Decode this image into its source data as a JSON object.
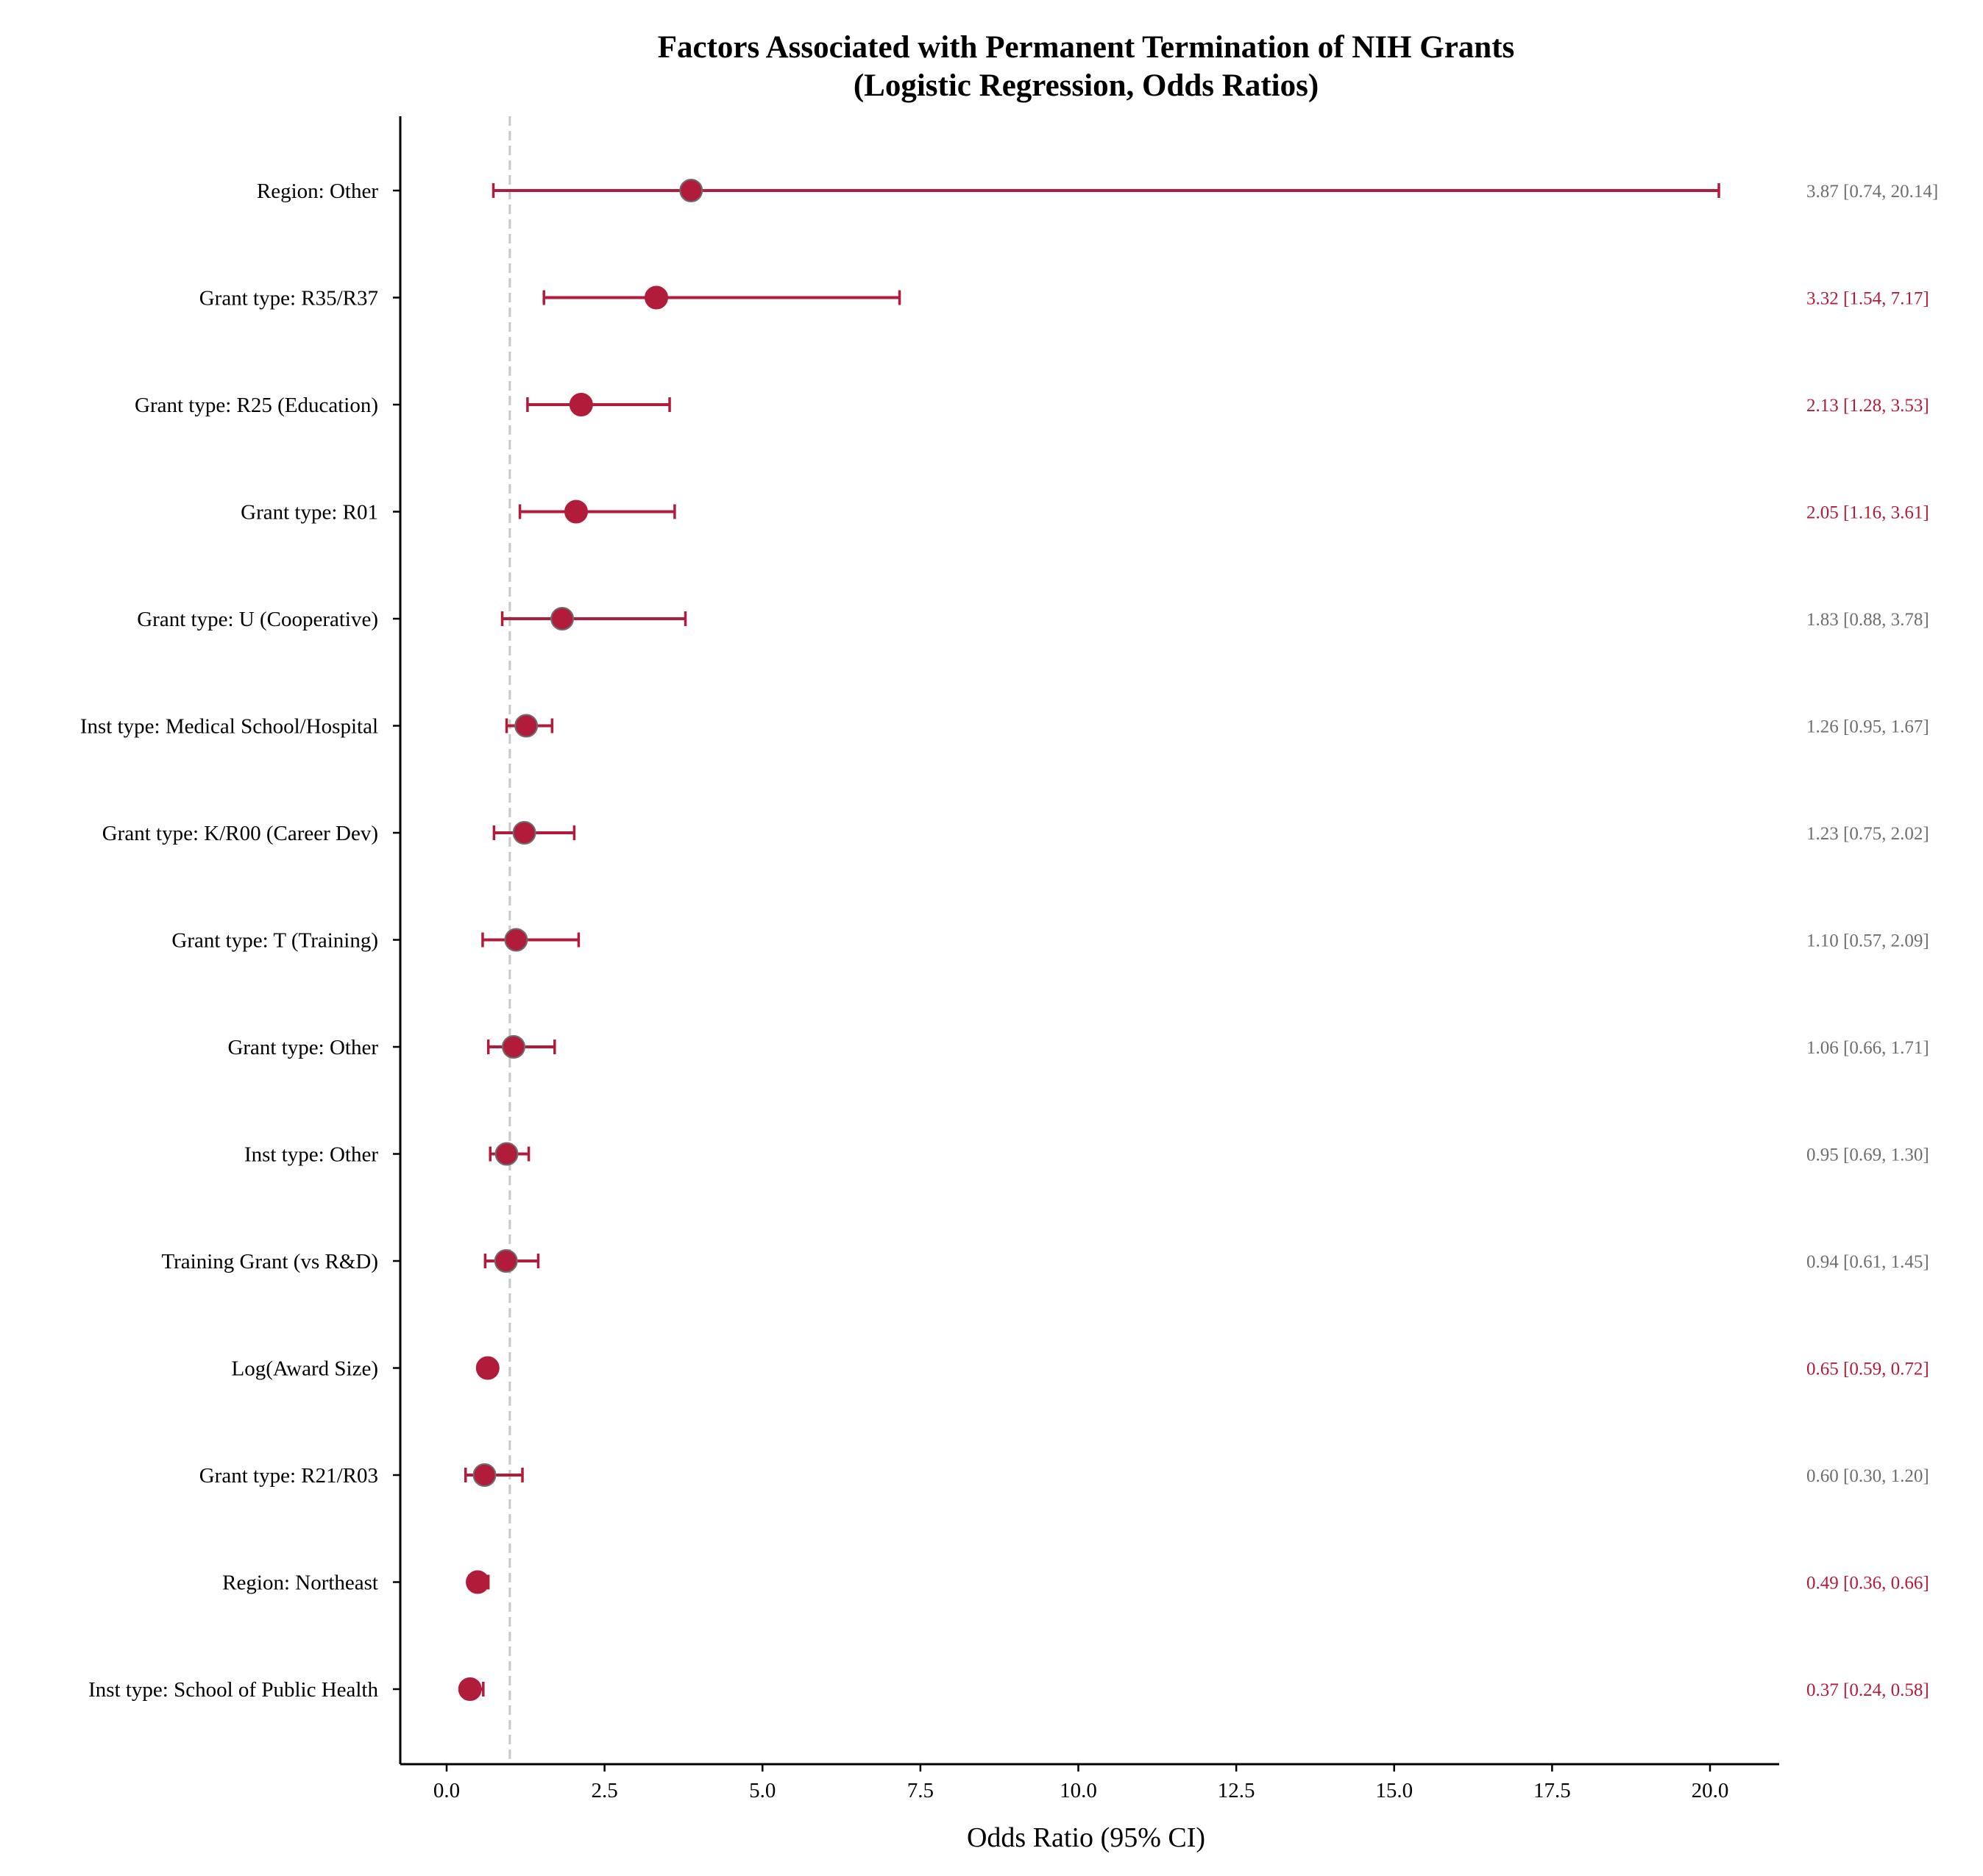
{
  "chart_data": {
    "type": "forest",
    "title_line1": "Factors Associated with Permanent Termination of NIH Grants",
    "title_line2": "(Logistic Regression, Odds Ratios)",
    "xlabel": "Odds Ratio (95% CI)",
    "xlim": [
      -0.7,
      21.2
    ],
    "xticks": [
      "0.0",
      "2.5",
      "5.0",
      "7.5",
      "10.0",
      "12.5",
      "15.0",
      "17.5",
      "20.0"
    ],
    "xtick_values": [
      0,
      2.5,
      5,
      7.5,
      10,
      12.5,
      15,
      17.5,
      20
    ],
    "reference_line": 1.0,
    "grid": false,
    "colors": {
      "marker": "#b01c3a",
      "marker_edge_nonsig": "#6e6e6e",
      "annotation_sig": "#b01c3a",
      "annotation_nonsig": "#6e6e6e",
      "reference": "#c8c8c8"
    },
    "rows": [
      {
        "label": "Region: Other",
        "or": 3.87,
        "lo": 0.74,
        "hi": 20.14,
        "text": "3.87 [0.74, 20.14]",
        "significant": false
      },
      {
        "label": "Grant type: R35/R37",
        "or": 3.32,
        "lo": 1.54,
        "hi": 7.17,
        "text": "3.32 [1.54, 7.17]",
        "significant": true
      },
      {
        "label": "Grant type: R25 (Education)",
        "or": 2.13,
        "lo": 1.28,
        "hi": 3.53,
        "text": "2.13 [1.28, 3.53]",
        "significant": true
      },
      {
        "label": "Grant type: R01",
        "or": 2.05,
        "lo": 1.16,
        "hi": 3.61,
        "text": "2.05 [1.16, 3.61]",
        "significant": true
      },
      {
        "label": "Grant type: U (Cooperative)",
        "or": 1.83,
        "lo": 0.88,
        "hi": 3.78,
        "text": "1.83 [0.88, 3.78]",
        "significant": false
      },
      {
        "label": "Inst type: Medical School/Hospital",
        "or": 1.26,
        "lo": 0.95,
        "hi": 1.67,
        "text": "1.26 [0.95, 1.67]",
        "significant": false
      },
      {
        "label": "Grant type: K/R00 (Career Dev)",
        "or": 1.23,
        "lo": 0.75,
        "hi": 2.02,
        "text": "1.23 [0.75, 2.02]",
        "significant": false
      },
      {
        "label": "Grant type: T (Training)",
        "or": 1.1,
        "lo": 0.57,
        "hi": 2.09,
        "text": "1.10 [0.57, 2.09]",
        "significant": false
      },
      {
        "label": "Grant type: Other",
        "or": 1.06,
        "lo": 0.66,
        "hi": 1.71,
        "text": "1.06 [0.66, 1.71]",
        "significant": false
      },
      {
        "label": "Inst type: Other",
        "or": 0.95,
        "lo": 0.69,
        "hi": 1.3,
        "text": "0.95 [0.69, 1.30]",
        "significant": false
      },
      {
        "label": "Training Grant (vs R&D)",
        "or": 0.94,
        "lo": 0.61,
        "hi": 1.45,
        "text": "0.94 [0.61, 1.45]",
        "significant": false
      },
      {
        "label": "Log(Award Size)",
        "or": 0.65,
        "lo": 0.59,
        "hi": 0.72,
        "text": "0.65 [0.59, 0.72]",
        "significant": true
      },
      {
        "label": "Grant type: R21/R03",
        "or": 0.6,
        "lo": 0.3,
        "hi": 1.2,
        "text": "0.60 [0.30, 1.20]",
        "significant": false
      },
      {
        "label": "Region: Northeast",
        "or": 0.49,
        "lo": 0.36,
        "hi": 0.66,
        "text": "0.49 [0.36, 0.66]",
        "significant": true
      },
      {
        "label": "Inst type: School of Public Health",
        "or": 0.37,
        "lo": 0.24,
        "hi": 0.58,
        "text": "0.37 [0.24, 0.58]",
        "significant": true
      }
    ]
  }
}
